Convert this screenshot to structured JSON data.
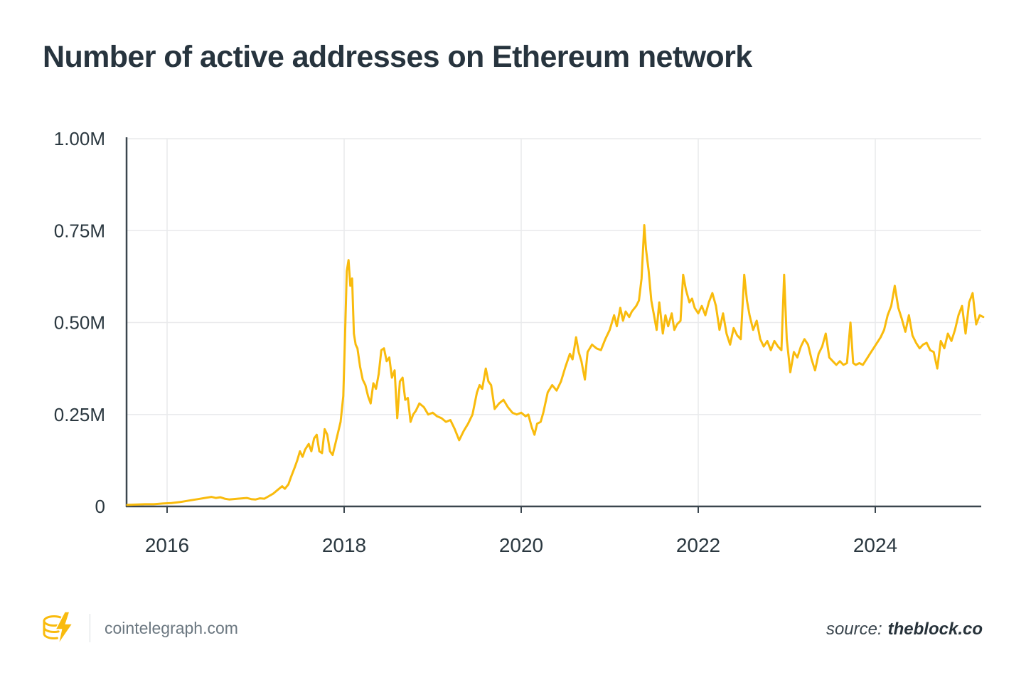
{
  "page": {
    "title": "Number of active addresses on Ethereum network"
  },
  "footer": {
    "site": "cointelegraph.com",
    "source_prefix": "source:",
    "source_name": "theblock.co"
  },
  "chart_data": {
    "type": "line",
    "title": "Number of active addresses on Ethereum network",
    "xlabel": "",
    "ylabel": "",
    "x_unit": "year",
    "y_unit": "active addresses (millions)",
    "xlim": [
      2015.55,
      2025.25
    ],
    "ylim": [
      0,
      1.0
    ],
    "grid": true,
    "legend": false,
    "x_ticks": [
      {
        "value": 2016,
        "label": "2016"
      },
      {
        "value": 2018,
        "label": "2018"
      },
      {
        "value": 2020,
        "label": "2020"
      },
      {
        "value": 2022,
        "label": "2022"
      },
      {
        "value": 2024,
        "label": "2024"
      }
    ],
    "y_ticks": [
      {
        "value": 0,
        "label": "0"
      },
      {
        "value": 0.25,
        "label": "0.25M"
      },
      {
        "value": 0.5,
        "label": "0.50M"
      },
      {
        "value": 0.75,
        "label": "0.75M"
      },
      {
        "value": 1.0,
        "label": "1.00M"
      }
    ],
    "colors": {
      "line": "#F9BB0D",
      "axis": "#3b464e",
      "grid": "#e9eaec",
      "text": "#2b3840",
      "title": "#27343e",
      "background": "#ffffff"
    },
    "series": [
      {
        "name": "Active addresses on Ethereum network",
        "points": [
          [
            2015.55,
            0.004
          ],
          [
            2015.65,
            0.005
          ],
          [
            2015.75,
            0.006
          ],
          [
            2015.85,
            0.006
          ],
          [
            2015.95,
            0.008
          ],
          [
            2016.05,
            0.009
          ],
          [
            2016.15,
            0.012
          ],
          [
            2016.25,
            0.016
          ],
          [
            2016.35,
            0.02
          ],
          [
            2016.45,
            0.024
          ],
          [
            2016.5,
            0.026
          ],
          [
            2016.55,
            0.023
          ],
          [
            2016.6,
            0.025
          ],
          [
            2016.65,
            0.021
          ],
          [
            2016.7,
            0.019
          ],
          [
            2016.8,
            0.021
          ],
          [
            2016.9,
            0.023
          ],
          [
            2016.95,
            0.02
          ],
          [
            2017.0,
            0.019
          ],
          [
            2017.05,
            0.022
          ],
          [
            2017.1,
            0.021
          ],
          [
            2017.15,
            0.028
          ],
          [
            2017.2,
            0.035
          ],
          [
            2017.25,
            0.045
          ],
          [
            2017.3,
            0.055
          ],
          [
            2017.33,
            0.048
          ],
          [
            2017.37,
            0.06
          ],
          [
            2017.4,
            0.08
          ],
          [
            2017.44,
            0.105
          ],
          [
            2017.47,
            0.125
          ],
          [
            2017.5,
            0.15
          ],
          [
            2017.53,
            0.135
          ],
          [
            2017.56,
            0.155
          ],
          [
            2017.6,
            0.17
          ],
          [
            2017.63,
            0.15
          ],
          [
            2017.66,
            0.185
          ],
          [
            2017.69,
            0.195
          ],
          [
            2017.72,
            0.15
          ],
          [
            2017.75,
            0.145
          ],
          [
            2017.78,
            0.21
          ],
          [
            2017.81,
            0.195
          ],
          [
            2017.84,
            0.15
          ],
          [
            2017.87,
            0.14
          ],
          [
            2017.9,
            0.17
          ],
          [
            2017.93,
            0.2
          ],
          [
            2017.96,
            0.23
          ],
          [
            2017.99,
            0.3
          ],
          [
            2018.01,
            0.46
          ],
          [
            2018.03,
            0.64
          ],
          [
            2018.05,
            0.67
          ],
          [
            2018.07,
            0.6
          ],
          [
            2018.09,
            0.62
          ],
          [
            2018.11,
            0.47
          ],
          [
            2018.13,
            0.44
          ],
          [
            2018.15,
            0.43
          ],
          [
            2018.18,
            0.38
          ],
          [
            2018.21,
            0.345
          ],
          [
            2018.24,
            0.33
          ],
          [
            2018.27,
            0.3
          ],
          [
            2018.3,
            0.28
          ],
          [
            2018.33,
            0.335
          ],
          [
            2018.36,
            0.32
          ],
          [
            2018.39,
            0.36
          ],
          [
            2018.42,
            0.425
          ],
          [
            2018.45,
            0.43
          ],
          [
            2018.48,
            0.395
          ],
          [
            2018.51,
            0.405
          ],
          [
            2018.54,
            0.35
          ],
          [
            2018.57,
            0.37
          ],
          [
            2018.6,
            0.24
          ],
          [
            2018.63,
            0.34
          ],
          [
            2018.66,
            0.35
          ],
          [
            2018.69,
            0.29
          ],
          [
            2018.72,
            0.295
          ],
          [
            2018.75,
            0.23
          ],
          [
            2018.78,
            0.25
          ],
          [
            2018.81,
            0.26
          ],
          [
            2018.85,
            0.28
          ],
          [
            2018.9,
            0.27
          ],
          [
            2018.95,
            0.25
          ],
          [
            2019.0,
            0.255
          ],
          [
            2019.05,
            0.245
          ],
          [
            2019.1,
            0.24
          ],
          [
            2019.15,
            0.23
          ],
          [
            2019.2,
            0.235
          ],
          [
            2019.25,
            0.21
          ],
          [
            2019.3,
            0.18
          ],
          [
            2019.35,
            0.205
          ],
          [
            2019.4,
            0.225
          ],
          [
            2019.45,
            0.25
          ],
          [
            2019.5,
            0.31
          ],
          [
            2019.53,
            0.33
          ],
          [
            2019.56,
            0.32
          ],
          [
            2019.6,
            0.375
          ],
          [
            2019.63,
            0.34
          ],
          [
            2019.66,
            0.33
          ],
          [
            2019.7,
            0.265
          ],
          [
            2019.75,
            0.28
          ],
          [
            2019.8,
            0.29
          ],
          [
            2019.85,
            0.27
          ],
          [
            2019.9,
            0.255
          ],
          [
            2019.95,
            0.25
          ],
          [
            2020.0,
            0.255
          ],
          [
            2020.05,
            0.245
          ],
          [
            2020.08,
            0.25
          ],
          [
            2020.12,
            0.215
          ],
          [
            2020.15,
            0.195
          ],
          [
            2020.18,
            0.225
          ],
          [
            2020.22,
            0.23
          ],
          [
            2020.25,
            0.255
          ],
          [
            2020.3,
            0.31
          ],
          [
            2020.35,
            0.33
          ],
          [
            2020.4,
            0.315
          ],
          [
            2020.45,
            0.34
          ],
          [
            2020.5,
            0.38
          ],
          [
            2020.55,
            0.415
          ],
          [
            2020.58,
            0.4
          ],
          [
            2020.62,
            0.46
          ],
          [
            2020.65,
            0.42
          ],
          [
            2020.68,
            0.395
          ],
          [
            2020.72,
            0.345
          ],
          [
            2020.75,
            0.42
          ],
          [
            2020.8,
            0.44
          ],
          [
            2020.85,
            0.43
          ],
          [
            2020.9,
            0.425
          ],
          [
            2020.95,
            0.455
          ],
          [
            2021.0,
            0.48
          ],
          [
            2021.05,
            0.52
          ],
          [
            2021.08,
            0.49
          ],
          [
            2021.12,
            0.54
          ],
          [
            2021.15,
            0.505
          ],
          [
            2021.18,
            0.53
          ],
          [
            2021.22,
            0.515
          ],
          [
            2021.25,
            0.53
          ],
          [
            2021.3,
            0.545
          ],
          [
            2021.33,
            0.56
          ],
          [
            2021.36,
            0.62
          ],
          [
            2021.39,
            0.765
          ],
          [
            2021.41,
            0.7
          ],
          [
            2021.44,
            0.64
          ],
          [
            2021.47,
            0.56
          ],
          [
            2021.5,
            0.52
          ],
          [
            2021.53,
            0.48
          ],
          [
            2021.56,
            0.555
          ],
          [
            2021.6,
            0.47
          ],
          [
            2021.63,
            0.52
          ],
          [
            2021.66,
            0.49
          ],
          [
            2021.7,
            0.525
          ],
          [
            2021.73,
            0.48
          ],
          [
            2021.76,
            0.495
          ],
          [
            2021.8,
            0.505
          ],
          [
            2021.83,
            0.63
          ],
          [
            2021.86,
            0.59
          ],
          [
            2021.9,
            0.555
          ],
          [
            2021.93,
            0.565
          ],
          [
            2021.96,
            0.54
          ],
          [
            2022.0,
            0.525
          ],
          [
            2022.04,
            0.545
          ],
          [
            2022.08,
            0.52
          ],
          [
            2022.12,
            0.555
          ],
          [
            2022.16,
            0.58
          ],
          [
            2022.2,
            0.545
          ],
          [
            2022.24,
            0.48
          ],
          [
            2022.28,
            0.525
          ],
          [
            2022.32,
            0.47
          ],
          [
            2022.36,
            0.44
          ],
          [
            2022.4,
            0.485
          ],
          [
            2022.44,
            0.465
          ],
          [
            2022.48,
            0.455
          ],
          [
            2022.52,
            0.63
          ],
          [
            2022.55,
            0.56
          ],
          [
            2022.58,
            0.52
          ],
          [
            2022.62,
            0.48
          ],
          [
            2022.66,
            0.505
          ],
          [
            2022.7,
            0.455
          ],
          [
            2022.74,
            0.435
          ],
          [
            2022.78,
            0.45
          ],
          [
            2022.82,
            0.425
          ],
          [
            2022.86,
            0.45
          ],
          [
            2022.9,
            0.435
          ],
          [
            2022.94,
            0.425
          ],
          [
            2022.97,
            0.63
          ],
          [
            2023.0,
            0.455
          ],
          [
            2023.04,
            0.365
          ],
          [
            2023.08,
            0.42
          ],
          [
            2023.12,
            0.405
          ],
          [
            2023.16,
            0.435
          ],
          [
            2023.2,
            0.455
          ],
          [
            2023.24,
            0.44
          ],
          [
            2023.28,
            0.4
          ],
          [
            2023.32,
            0.37
          ],
          [
            2023.36,
            0.415
          ],
          [
            2023.4,
            0.435
          ],
          [
            2023.44,
            0.47
          ],
          [
            2023.48,
            0.405
          ],
          [
            2023.52,
            0.395
          ],
          [
            2023.56,
            0.385
          ],
          [
            2023.6,
            0.395
          ],
          [
            2023.64,
            0.385
          ],
          [
            2023.68,
            0.39
          ],
          [
            2023.72,
            0.5
          ],
          [
            2023.75,
            0.39
          ],
          [
            2023.78,
            0.385
          ],
          [
            2023.82,
            0.39
          ],
          [
            2023.86,
            0.385
          ],
          [
            2023.9,
            0.4
          ],
          [
            2023.94,
            0.415
          ],
          [
            2023.98,
            0.43
          ],
          [
            2024.02,
            0.445
          ],
          [
            2024.06,
            0.46
          ],
          [
            2024.1,
            0.48
          ],
          [
            2024.14,
            0.52
          ],
          [
            2024.18,
            0.545
          ],
          [
            2024.22,
            0.6
          ],
          [
            2024.26,
            0.54
          ],
          [
            2024.3,
            0.51
          ],
          [
            2024.34,
            0.475
          ],
          [
            2024.38,
            0.52
          ],
          [
            2024.42,
            0.465
          ],
          [
            2024.46,
            0.445
          ],
          [
            2024.5,
            0.43
          ],
          [
            2024.54,
            0.44
          ],
          [
            2024.58,
            0.445
          ],
          [
            2024.62,
            0.425
          ],
          [
            2024.66,
            0.42
          ],
          [
            2024.7,
            0.375
          ],
          [
            2024.74,
            0.45
          ],
          [
            2024.78,
            0.43
          ],
          [
            2024.82,
            0.47
          ],
          [
            2024.86,
            0.45
          ],
          [
            2024.9,
            0.48
          ],
          [
            2024.94,
            0.52
          ],
          [
            2024.98,
            0.545
          ],
          [
            2025.02,
            0.47
          ],
          [
            2025.06,
            0.555
          ],
          [
            2025.1,
            0.58
          ],
          [
            2025.14,
            0.495
          ],
          [
            2025.18,
            0.52
          ],
          [
            2025.22,
            0.515
          ]
        ]
      }
    ]
  }
}
